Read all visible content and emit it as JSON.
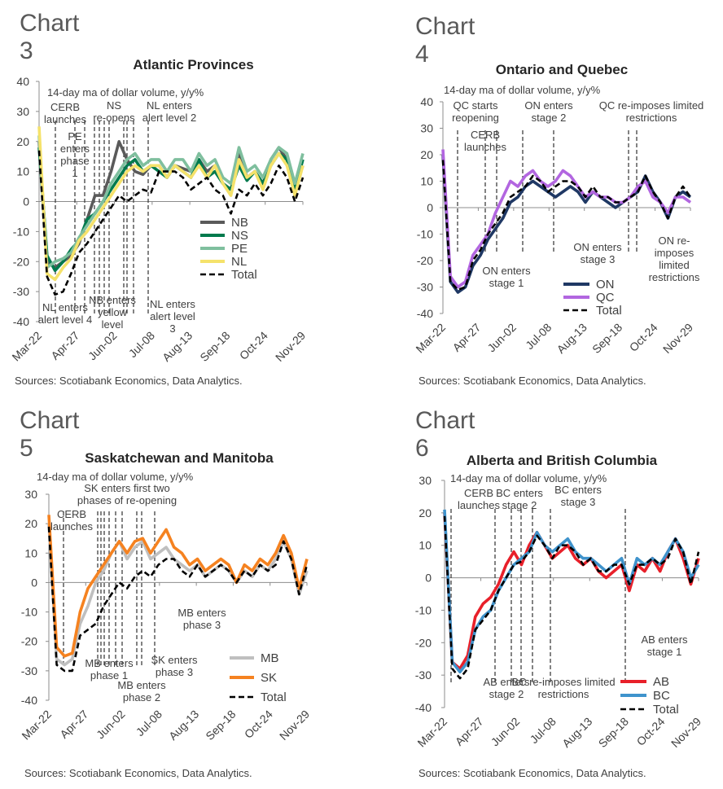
{
  "charts": [
    {
      "heading": "Chart 3",
      "source": "Sources: Scotiabank Economics, Data Analytics.",
      "chart_data": {
        "type": "line",
        "title": "Atlantic Provinces",
        "ylabel": "14-day ma of dollar volume, y/y%",
        "ylim": [
          -40,
          40
        ],
        "yticks": [
          40,
          30,
          20,
          10,
          0,
          -10,
          -20,
          -30,
          -40
        ],
        "x_ticks": [
          "Mar-22",
          "Apr-27",
          "Jun-02",
          "Jul-08",
          "Aug-13",
          "Sep-18",
          "Oct-24",
          "Nov-29"
        ],
        "grid": false,
        "legend_position": "right",
        "series": [
          {
            "name": "NB",
            "color": "#5a5a5a",
            "style": "solid",
            "values": [
              20,
              -20,
              -22,
              -20,
              -18,
              -14,
              -6,
              2,
              2,
              10,
              20,
              14,
              10,
              9,
              12,
              12,
              8,
              12,
              11,
              10,
              14,
              10,
              12,
              6,
              4,
              16,
              8,
              10,
              6,
              14,
              18,
              14,
              4,
              12
            ]
          },
          {
            "name": "NS",
            "color": "#007a4d",
            "style": "solid",
            "values": [
              18,
              -18,
              -23,
              -20,
              -16,
              -13,
              -6,
              -4,
              0,
              4,
              8,
              12,
              14,
              10,
              12,
              10,
              8,
              12,
              10,
              8,
              14,
              8,
              10,
              6,
              4,
              12,
              7,
              10,
              6,
              12,
              16,
              14,
              4,
              14
            ]
          },
          {
            "name": "PE",
            "color": "#7fbf9e",
            "style": "solid",
            "values": [
              22,
              -22,
              -20,
              -19,
              -17,
              -12,
              -8,
              -4,
              0,
              6,
              10,
              14,
              16,
              12,
              14,
              14,
              10,
              14,
              14,
              10,
              16,
              12,
              14,
              8,
              6,
              18,
              10,
              12,
              8,
              14,
              18,
              16,
              6,
              16
            ]
          },
          {
            "name": "NL",
            "color": "#f5e26b",
            "style": "solid",
            "values": [
              25,
              -24,
              -26,
              -22,
              -19,
              -13,
              -10,
              -6,
              -2,
              2,
              6,
              10,
              12,
              10,
              12,
              12,
              8,
              12,
              10,
              8,
              12,
              8,
              12,
              6,
              2,
              14,
              8,
              10,
              4,
              12,
              16,
              12,
              2,
              12
            ]
          },
          {
            "name": "Total",
            "color": "#000000",
            "style": "dashed",
            "values": [
              17,
              -25,
              -31,
              -30,
              -24,
              -17,
              -14,
              -10,
              -6,
              -2,
              2,
              0,
              2,
              4,
              3,
              10,
              10,
              10,
              8,
              4,
              6,
              8,
              4,
              2,
              -4,
              4,
              2,
              6,
              2,
              6,
              12,
              8,
              0,
              8
            ]
          }
        ],
        "annotations": [
          {
            "lines": [
              "CERB",
              "launches"
            ]
          },
          {
            "lines": [
              "PE",
              "enters",
              "phase",
              "1"
            ]
          },
          {
            "lines": [
              "NS",
              "re-opens"
            ]
          },
          {
            "lines": [
              "NL enters",
              "alert level 2"
            ]
          },
          {
            "lines": [
              "NL enters",
              "alert level 4"
            ]
          },
          {
            "lines": [
              "NB enters",
              "yellow",
              "level"
            ]
          },
          {
            "lines": [
              "NL enters",
              "alert level",
              "3"
            ]
          }
        ]
      }
    },
    {
      "heading": "Chart 4",
      "source": "Sources: Scotiabank Economics, Data Analytics.",
      "chart_data": {
        "type": "line",
        "title": "Ontario and Quebec",
        "ylabel": "14-day ma of dollar volume, y/y%",
        "ylim": [
          -40,
          40
        ],
        "yticks": [
          40,
          30,
          20,
          10,
          0,
          -10,
          -20,
          -30,
          -40
        ],
        "x_ticks": [
          "Mar-22",
          "Apr-27",
          "Jun-02",
          "Jul-08",
          "Aug-13",
          "Sep-18",
          "Oct-24",
          "Nov-29"
        ],
        "grid": false,
        "legend_position": "bottom-left",
        "series": [
          {
            "name": "ON",
            "color": "#1f3864",
            "style": "solid",
            "values": [
              20,
              -28,
              -32,
              -30,
              -22,
              -18,
              -12,
              -8,
              -4,
              2,
              4,
              8,
              10,
              8,
              6,
              4,
              6,
              8,
              6,
              2,
              6,
              4,
              2,
              0,
              2,
              4,
              6,
              12,
              6,
              2,
              -4,
              4,
              6,
              4
            ]
          },
          {
            "name": "QC",
            "color": "#b266e0",
            "style": "solid",
            "values": [
              22,
              -26,
              -30,
              -28,
              -18,
              -14,
              -10,
              -2,
              4,
              10,
              8,
              12,
              14,
              10,
              8,
              10,
              14,
              12,
              8,
              4,
              6,
              4,
              4,
              2,
              2,
              4,
              8,
              10,
              4,
              2,
              -2,
              4,
              4,
              2
            ]
          },
          {
            "name": "Total",
            "color": "#000000",
            "style": "dashed",
            "values": [
              18,
              -28,
              -31,
              -30,
              -20,
              -16,
              -10,
              -6,
              -2,
              4,
              6,
              8,
              12,
              10,
              6,
              8,
              10,
              10,
              8,
              4,
              8,
              4,
              4,
              2,
              2,
              4,
              6,
              12,
              6,
              2,
              -4,
              4,
              8,
              4
            ]
          }
        ],
        "annotations": [
          {
            "lines": [
              "QC starts",
              "reopening"
            ]
          },
          {
            "lines": [
              "CERB",
              "launches"
            ]
          },
          {
            "lines": [
              "ON enters",
              "stage 2"
            ]
          },
          {
            "lines": [
              "QC re-imposes limited",
              "restrictions"
            ]
          },
          {
            "lines": [
              "ON enters",
              "stage 1"
            ]
          },
          {
            "lines": [
              "ON enters",
              "stage 3"
            ]
          },
          {
            "lines": [
              "ON re-",
              "imposes",
              "limited",
              "restrictions"
            ]
          }
        ]
      }
    },
    {
      "heading": "Chart 5",
      "source": "Sources: Scotiabank Economics, Data Analytics.",
      "chart_data": {
        "type": "line",
        "title": "Saskatchewan and Manitoba",
        "ylabel": "14-day ma of dollar volume, y/y%",
        "ylim": [
          -40,
          30
        ],
        "yticks": [
          30,
          20,
          10,
          0,
          -10,
          -20,
          -30,
          -40
        ],
        "x_ticks": [
          "Mar-22",
          "Apr-27",
          "Jun-02",
          "Jul-08",
          "Aug-13",
          "Sep-18",
          "Oct-24",
          "Nov-29"
        ],
        "grid": false,
        "legend_position": "bottom-right",
        "series": [
          {
            "name": "MB",
            "color": "#bfbfbf",
            "style": "solid",
            "values": [
              20,
              -26,
              -28,
              -26,
              -14,
              -8,
              0,
              4,
              10,
              14,
              8,
              12,
              14,
              8,
              10,
              12,
              8,
              6,
              4,
              6,
              2,
              4,
              6,
              4,
              0,
              4,
              2,
              6,
              4,
              8,
              14,
              8,
              -4,
              4
            ]
          },
          {
            "name": "SK",
            "color": "#f58220",
            "style": "solid",
            "values": [
              23,
              -22,
              -25,
              -24,
              -10,
              -2,
              2,
              6,
              10,
              14,
              10,
              14,
              15,
              10,
              14,
              18,
              12,
              10,
              6,
              8,
              4,
              6,
              8,
              6,
              0,
              6,
              4,
              8,
              6,
              10,
              16,
              10,
              -2,
              8
            ]
          },
          {
            "name": "Total",
            "color": "#000000",
            "style": "dashed",
            "values": [
              19,
              -28,
              -30,
              -30,
              -18,
              -16,
              -14,
              -8,
              -4,
              0,
              -2,
              2,
              4,
              2,
              6,
              8,
              8,
              4,
              2,
              6,
              2,
              4,
              6,
              4,
              0,
              4,
              2,
              6,
              4,
              6,
              14,
              8,
              -4,
              6
            ]
          }
        ],
        "annotations": [
          {
            "lines": [
              "CERB",
              "launches"
            ]
          },
          {
            "lines": [
              "SK enters first two",
              "phases of re-opening"
            ]
          },
          {
            "lines": [
              "MB enters",
              "phase 3"
            ]
          },
          {
            "lines": [
              "MB enters",
              "phase 1"
            ]
          },
          {
            "lines": [
              "SK enters",
              "phase 3"
            ]
          },
          {
            "lines": [
              "MB enters",
              "phase 2"
            ]
          }
        ]
      }
    },
    {
      "heading": "Chart 6",
      "source": "Sources: Scotiabank Economics, Data Analytics.",
      "chart_data": {
        "type": "line",
        "title": "Alberta and British Columbia",
        "ylabel": "14-day ma of dollar volume, y/y%",
        "ylim": [
          -40,
          30
        ],
        "yticks": [
          30,
          20,
          10,
          0,
          -10,
          -20,
          -30,
          -40
        ],
        "x_ticks": [
          "Mar-22",
          "Apr-27",
          "Jun-02",
          "Jul-08",
          "Aug-13",
          "Sep-18",
          "Oct-24",
          "Nov-29"
        ],
        "grid": false,
        "legend_position": "bottom-right",
        "series": [
          {
            "name": "AB",
            "color": "#e8202a",
            "style": "solid",
            "values": [
              20,
              -26,
              -28,
              -24,
              -12,
              -8,
              -6,
              -2,
              4,
              8,
              4,
              10,
              14,
              10,
              6,
              8,
              10,
              6,
              4,
              6,
              2,
              0,
              2,
              4,
              -4,
              4,
              2,
              6,
              2,
              8,
              12,
              6,
              -2,
              6
            ]
          },
          {
            "name": "BC",
            "color": "#3f93cc",
            "style": "solid",
            "values": [
              21,
              -26,
              -29,
              -26,
              -16,
              -12,
              -10,
              -4,
              0,
              4,
              6,
              8,
              14,
              10,
              8,
              10,
              12,
              8,
              6,
              6,
              4,
              2,
              4,
              6,
              -2,
              6,
              4,
              6,
              4,
              8,
              12,
              8,
              0,
              4
            ]
          },
          {
            "name": "Total",
            "color": "#000000",
            "style": "dashed",
            "values": [
              19,
              -28,
              -31,
              -28,
              -16,
              -13,
              -10,
              -4,
              0,
              4,
              5,
              8,
              13,
              10,
              6,
              10,
              10,
              8,
              4,
              6,
              2,
              2,
              4,
              4,
              -2,
              4,
              4,
              6,
              4,
              6,
              12,
              8,
              -2,
              8
            ]
          }
        ],
        "annotations": [
          {
            "lines": [
              "CERB",
              "launches"
            ]
          },
          {
            "lines": [
              "BC enters",
              "stage 2"
            ]
          },
          {
            "lines": [
              "BC enters",
              "stage 3"
            ]
          },
          {
            "lines": [
              "AB enters",
              "stage 1"
            ]
          },
          {
            "lines": [
              "AB enters",
              "stage 2"
            ]
          },
          {
            "lines": [
              "BC re-imposes limited",
              "restrictions"
            ]
          }
        ]
      }
    }
  ]
}
